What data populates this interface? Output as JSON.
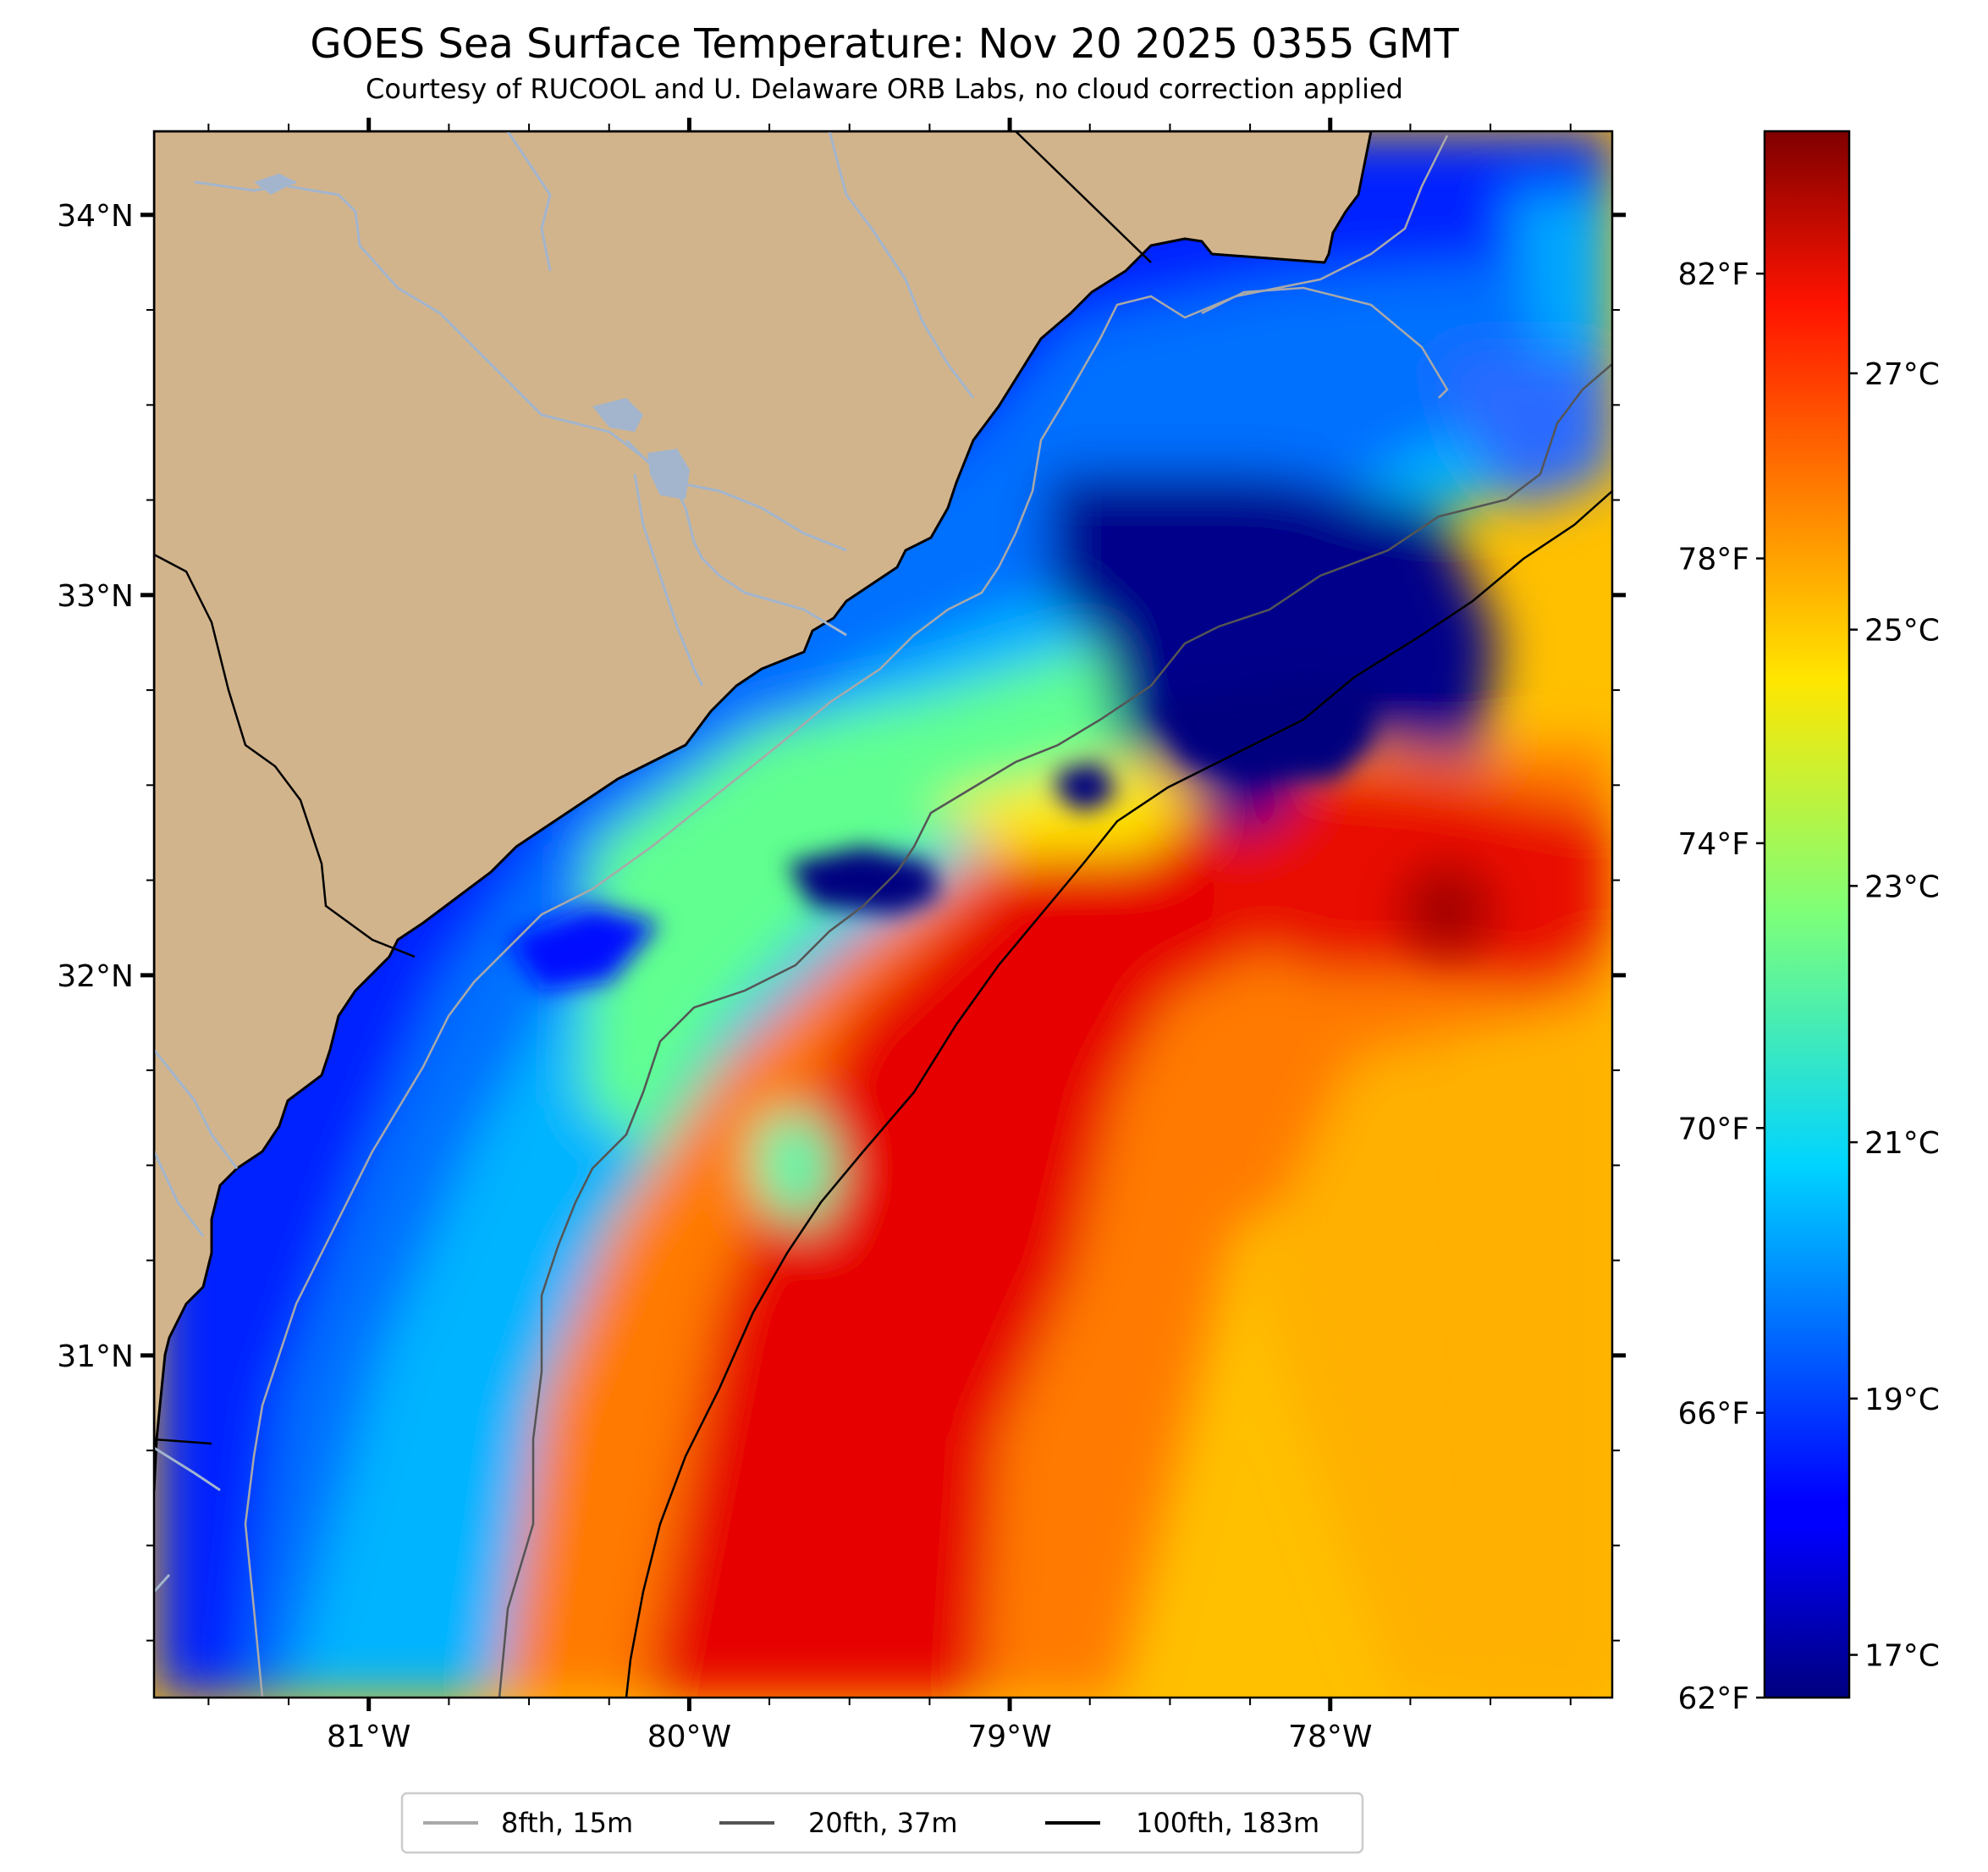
{
  "title": "GOES Sea Surface Temperature: Nov 20 2025 0355 GMT",
  "subtitle": "Courtesy of RUCOOL and U. Delaware ORB Labs, no cloud correction applied",
  "map": {
    "lon_range": [
      -81.67,
      -77.12
    ],
    "lat_range": [
      30.1,
      34.22
    ],
    "lon_ticks": [
      {
        "value": -81,
        "label": "81°W"
      },
      {
        "value": -80,
        "label": "80°W"
      },
      {
        "value": -79,
        "label": "79°W"
      },
      {
        "value": -78,
        "label": "78°W"
      }
    ],
    "lat_ticks": [
      {
        "value": 34,
        "label": "34°N"
      },
      {
        "value": 33,
        "label": "33°N"
      },
      {
        "value": 32,
        "label": "32°N"
      },
      {
        "value": 31,
        "label": "31°N"
      }
    ],
    "land_color": "#d2b48c",
    "river_color": "#a2b5cd"
  },
  "colorbar": {
    "colormap": "jet",
    "range_f": [
      62,
      84
    ],
    "fahrenheit_ticks": [
      {
        "value": 62,
        "label": "62°F"
      },
      {
        "value": 66,
        "label": "66°F"
      },
      {
        "value": 70,
        "label": "70°F"
      },
      {
        "value": 74,
        "label": "74°F"
      },
      {
        "value": 78,
        "label": "78°F"
      },
      {
        "value": 82,
        "label": "82°F"
      }
    ],
    "celsius_ticks": [
      {
        "value": 17,
        "label": "17°C"
      },
      {
        "value": 19,
        "label": "19°C"
      },
      {
        "value": 21,
        "label": "21°C"
      },
      {
        "value": 23,
        "label": "23°C"
      },
      {
        "value": 25,
        "label": "25°C"
      },
      {
        "value": 27,
        "label": "27°C"
      }
    ]
  },
  "legend": [
    {
      "label": "8fth, 15m",
      "color": "#a9a9a9"
    },
    {
      "label": "20fth, 37m",
      "color": "#555555"
    },
    {
      "label": "100fth, 183m",
      "color": "#000000"
    }
  ]
}
